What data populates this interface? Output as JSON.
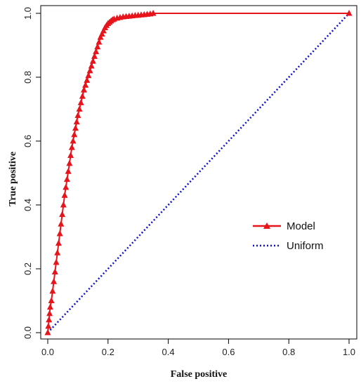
{
  "chart_data": {
    "type": "line",
    "xlabel": "False positive",
    "ylabel": "True positive",
    "xlim": [
      0,
      1
    ],
    "ylim": [
      0,
      1
    ],
    "x_ticks": [
      "0.0",
      "0.2",
      "0.4",
      "0.6",
      "0.8",
      "1.0"
    ],
    "y_ticks": [
      "0.0",
      "0.2",
      "0.4",
      "0.6",
      "0.8",
      "1.0"
    ],
    "grid": false,
    "legend_position": "right",
    "series": [
      {
        "name": "Model",
        "color": "#e8141c",
        "marker": "triangle",
        "x": [
          0,
          0.002,
          0.004,
          0.006,
          0.008,
          0.012,
          0.016,
          0.02,
          0.024,
          0.028,
          0.032,
          0.036,
          0.04,
          0.044,
          0.048,
          0.052,
          0.056,
          0.06,
          0.064,
          0.068,
          0.072,
          0.076,
          0.08,
          0.084,
          0.088,
          0.092,
          0.096,
          0.1,
          0.105,
          0.11,
          0.115,
          0.12,
          0.125,
          0.13,
          0.135,
          0.14,
          0.145,
          0.15,
          0.155,
          0.16,
          0.165,
          0.17,
          0.175,
          0.18,
          0.185,
          0.19,
          0.195,
          0.2,
          0.205,
          0.21,
          0.215,
          0.22,
          0.23,
          0.24,
          0.25,
          0.26,
          0.27,
          0.28,
          0.29,
          0.3,
          0.31,
          0.32,
          0.33,
          0.34,
          0.35,
          1.0
        ],
        "y": [
          0,
          0.02,
          0.04,
          0.06,
          0.08,
          0.1,
          0.13,
          0.16,
          0.19,
          0.22,
          0.25,
          0.28,
          0.31,
          0.34,
          0.37,
          0.4,
          0.43,
          0.455,
          0.48,
          0.505,
          0.53,
          0.555,
          0.58,
          0.6,
          0.62,
          0.64,
          0.66,
          0.68,
          0.7,
          0.72,
          0.74,
          0.76,
          0.775,
          0.79,
          0.805,
          0.82,
          0.835,
          0.85,
          0.865,
          0.88,
          0.895,
          0.91,
          0.925,
          0.935,
          0.945,
          0.955,
          0.962,
          0.968,
          0.972,
          0.976,
          0.98,
          0.982,
          0.985,
          0.987,
          0.989,
          0.99,
          0.991,
          0.992,
          0.993,
          0.994,
          0.995,
          0.996,
          0.997,
          0.998,
          1.0,
          1.0
        ]
      },
      {
        "name": "Uniform",
        "color": "#1010d0",
        "style": "dotted",
        "x": [
          0,
          1
        ],
        "y": [
          0,
          1
        ]
      }
    ]
  }
}
